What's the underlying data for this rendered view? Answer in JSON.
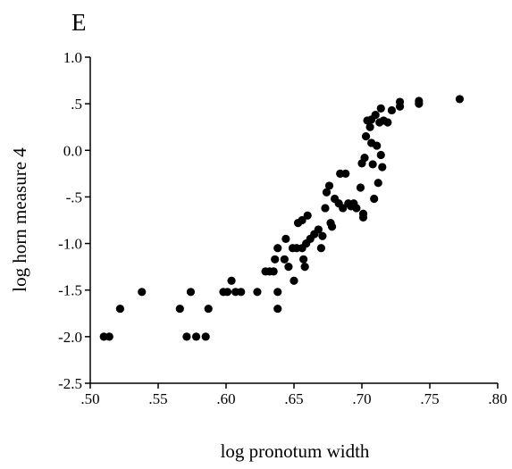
{
  "chart_data": {
    "type": "scatter",
    "panel_label": "E",
    "xlabel": "log pronotum width",
    "ylabel": "log horn measure 4",
    "xlim": [
      0.5,
      0.8
    ],
    "ylim": [
      -2.5,
      1.0
    ],
    "grid": false,
    "legend": "none",
    "marker_color": "#000000",
    "x_ticks": [
      {
        "value": 0.5,
        "label": ".50"
      },
      {
        "value": 0.55,
        "label": ".55"
      },
      {
        "value": 0.6,
        "label": ".60"
      },
      {
        "value": 0.65,
        "label": ".65"
      },
      {
        "value": 0.7,
        "label": ".70"
      },
      {
        "value": 0.75,
        "label": ".75"
      },
      {
        "value": 0.8,
        "label": ".80"
      }
    ],
    "y_ticks": [
      {
        "value": 1.0,
        "label": "1.0"
      },
      {
        "value": 0.5,
        "label": ".5"
      },
      {
        "value": 0.0,
        "label": "0.0"
      },
      {
        "value": -0.5,
        "label": "-.5"
      },
      {
        "value": -1.0,
        "label": "-1.0"
      },
      {
        "value": -1.5,
        "label": "-1.5"
      },
      {
        "value": -2.0,
        "label": "-2.0"
      },
      {
        "value": -2.5,
        "label": "-2.5"
      }
    ],
    "points": [
      {
        "x": 0.51,
        "y": -2.0
      },
      {
        "x": 0.514,
        "y": -2.0
      },
      {
        "x": 0.522,
        "y": -1.7
      },
      {
        "x": 0.538,
        "y": -1.52
      },
      {
        "x": 0.566,
        "y": -1.7
      },
      {
        "x": 0.571,
        "y": -2.0
      },
      {
        "x": 0.574,
        "y": -1.52
      },
      {
        "x": 0.578,
        "y": -2.0
      },
      {
        "x": 0.585,
        "y": -2.0
      },
      {
        "x": 0.587,
        "y": -1.7
      },
      {
        "x": 0.598,
        "y": -1.52
      },
      {
        "x": 0.601,
        "y": -1.52
      },
      {
        "x": 0.604,
        "y": -1.4
      },
      {
        "x": 0.607,
        "y": -1.52
      },
      {
        "x": 0.611,
        "y": -1.52
      },
      {
        "x": 0.623,
        "y": -1.52
      },
      {
        "x": 0.629,
        "y": -1.3
      },
      {
        "x": 0.632,
        "y": -1.3
      },
      {
        "x": 0.635,
        "y": -1.3
      },
      {
        "x": 0.636,
        "y": -1.17
      },
      {
        "x": 0.638,
        "y": -1.05
      },
      {
        "x": 0.638,
        "y": -1.52
      },
      {
        "x": 0.638,
        "y": -1.7
      },
      {
        "x": 0.643,
        "y": -1.17
      },
      {
        "x": 0.644,
        "y": -0.95
      },
      {
        "x": 0.646,
        "y": -1.25
      },
      {
        "x": 0.649,
        "y": -1.05
      },
      {
        "x": 0.65,
        "y": -1.4
      },
      {
        "x": 0.652,
        "y": -1.05
      },
      {
        "x": 0.653,
        "y": -0.78
      },
      {
        "x": 0.656,
        "y": -1.05
      },
      {
        "x": 0.656,
        "y": -0.75
      },
      {
        "x": 0.657,
        "y": -1.17
      },
      {
        "x": 0.658,
        "y": -1.25
      },
      {
        "x": 0.659,
        "y": -1.0
      },
      {
        "x": 0.66,
        "y": -0.7
      },
      {
        "x": 0.662,
        "y": -0.95
      },
      {
        "x": 0.665,
        "y": -0.9
      },
      {
        "x": 0.668,
        "y": -0.85
      },
      {
        "x": 0.67,
        "y": -1.05
      },
      {
        "x": 0.671,
        "y": -0.92
      },
      {
        "x": 0.673,
        "y": -0.62
      },
      {
        "x": 0.674,
        "y": -0.45
      },
      {
        "x": 0.676,
        "y": -0.38
      },
      {
        "x": 0.677,
        "y": -0.78
      },
      {
        "x": 0.678,
        "y": -0.82
      },
      {
        "x": 0.68,
        "y": -0.52
      },
      {
        "x": 0.683,
        "y": -0.57
      },
      {
        "x": 0.684,
        "y": -0.25
      },
      {
        "x": 0.686,
        "y": -0.62
      },
      {
        "x": 0.688,
        "y": -0.25
      },
      {
        "x": 0.69,
        "y": -0.57
      },
      {
        "x": 0.692,
        "y": -0.6
      },
      {
        "x": 0.694,
        "y": -0.57
      },
      {
        "x": 0.696,
        "y": -0.62
      },
      {
        "x": 0.699,
        "y": -0.4
      },
      {
        "x": 0.7,
        "y": -0.14
      },
      {
        "x": 0.701,
        "y": -0.68
      },
      {
        "x": 0.701,
        "y": -0.72
      },
      {
        "x": 0.702,
        "y": -0.08
      },
      {
        "x": 0.703,
        "y": 0.15
      },
      {
        "x": 0.704,
        "y": 0.32
      },
      {
        "x": 0.706,
        "y": 0.25
      },
      {
        "x": 0.707,
        "y": 0.33
      },
      {
        "x": 0.707,
        "y": 0.08
      },
      {
        "x": 0.708,
        "y": -0.15
      },
      {
        "x": 0.709,
        "y": -0.52
      },
      {
        "x": 0.71,
        "y": 0.38
      },
      {
        "x": 0.711,
        "y": 0.05
      },
      {
        "x": 0.712,
        "y": -0.35
      },
      {
        "x": 0.713,
        "y": 0.3
      },
      {
        "x": 0.714,
        "y": 0.45
      },
      {
        "x": 0.714,
        "y": -0.05
      },
      {
        "x": 0.715,
        "y": -0.18
      },
      {
        "x": 0.716,
        "y": 0.32
      },
      {
        "x": 0.719,
        "y": 0.3
      },
      {
        "x": 0.722,
        "y": 0.43
      },
      {
        "x": 0.728,
        "y": 0.47
      },
      {
        "x": 0.728,
        "y": 0.52
      },
      {
        "x": 0.742,
        "y": 0.53
      },
      {
        "x": 0.742,
        "y": 0.5
      },
      {
        "x": 0.772,
        "y": 0.55
      }
    ]
  }
}
